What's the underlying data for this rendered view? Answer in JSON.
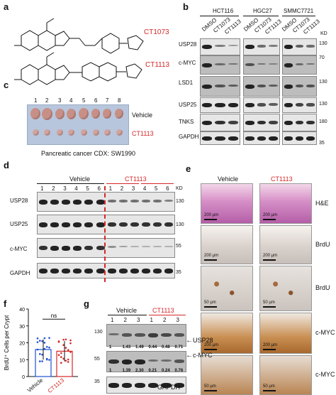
{
  "panels": {
    "a": {
      "label": "a",
      "compound1": "CT1073",
      "compound2": "CT1113"
    },
    "b": {
      "label": "b",
      "cell_lines": [
        "HCT116",
        "HGC27",
        "SMMC7721"
      ],
      "lanes": [
        "DMSO",
        "CT1073",
        "CT1113"
      ],
      "proteins": [
        "USP28",
        "c-MYC",
        "LSD1",
        "USP25",
        "TNKS",
        "GAPDH"
      ],
      "kd_label": "KD",
      "kd_marks": [
        "130",
        "70",
        "130",
        "130",
        "180",
        "35"
      ]
    },
    "c": {
      "label": "c",
      "numbers": [
        "1",
        "2",
        "3",
        "4",
        "5",
        "6",
        "7",
        "8"
      ],
      "row1": "Vehicle",
      "row2": "CT1113",
      "caption": "Pancreatic cancer CDX: SW1990"
    },
    "d": {
      "label": "d",
      "groups": [
        "Vehicle",
        "CT1113"
      ],
      "lanes": [
        "1",
        "2",
        "3",
        "4",
        "5",
        "6",
        "1",
        "2",
        "3",
        "4",
        "5",
        "6"
      ],
      "proteins": [
        "USP28",
        "USP25",
        "c-MYC",
        "GAPDH"
      ],
      "kd_label": "KD",
      "kd_marks": [
        "130",
        "130",
        "55",
        "35"
      ]
    },
    "e": {
      "label": "e",
      "cols": [
        "Vehicle",
        "CT1113"
      ],
      "rows": [
        "H&E",
        "BrdU",
        "BrdU",
        "c-MYC",
        "c-MYC"
      ],
      "scale": [
        "200 µm",
        "200 µm",
        "50 µm",
        "200 µm",
        "50 µm"
      ]
    },
    "f": {
      "label": "f",
      "ylabel": "BrdU⁺ Cells per Crypt",
      "sig": "ns",
      "xcats": [
        "Vehicle",
        "CT1113"
      ],
      "yticks": [
        "0",
        "10",
        "20",
        "30",
        "40"
      ]
    },
    "g": {
      "label": "g",
      "groups": [
        "Vehicle",
        "CT1113"
      ],
      "lanes": [
        "1",
        "2",
        "3",
        "1",
        "2",
        "3"
      ],
      "proteins": [
        "USP28",
        "c-MYC",
        "GAPDH"
      ],
      "kd_marks": [
        "130",
        "55",
        "35"
      ],
      "quant_usp28": [
        "1",
        "1.43",
        "1.49",
        "0.44",
        "0.48",
        "0.71"
      ],
      "quant_cmyc": [
        "1",
        "1.39",
        "2.30",
        "0.21",
        "0.24",
        "0.76"
      ]
    }
  },
  "chart_data": {
    "type": "bar",
    "categories": [
      "Vehicle",
      "CT1113"
    ],
    "values": [
      16,
      15
    ],
    "ylabel": "BrdU⁺ Cells per Crypt",
    "ylim": [
      0,
      40
    ],
    "annotation": "ns"
  }
}
